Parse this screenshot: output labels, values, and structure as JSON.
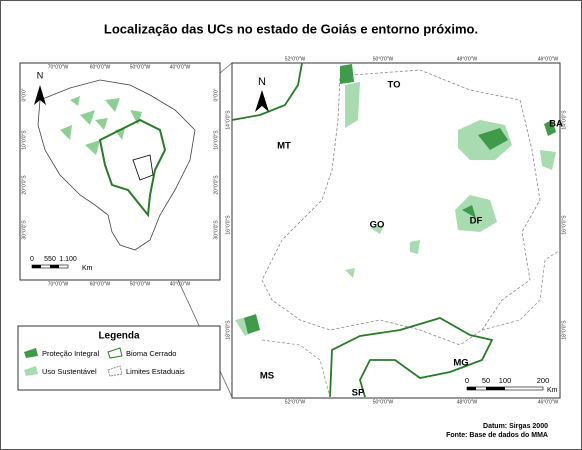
{
  "title": "Localização das UCs no estado de Goiás e entorno próximo.",
  "inset_map": {
    "north": "N",
    "lon_labels": [
      "70°0'0\"W",
      "60°0'0\"W",
      "50°0'0\"W",
      "40°0'0\"W"
    ],
    "lat_labels": [
      "0°0'0\"",
      "10°0'0\"S",
      "20°0'0\"S",
      "30°0'0\"S"
    ],
    "scale_labels": [
      "0",
      "550",
      "1.100"
    ],
    "scale_unit": "Km"
  },
  "main_map": {
    "north": "N",
    "lon_labels": [
      "52°0'0\"W",
      "50°0'0\"W",
      "48°0'0\"W",
      "46°0'0\"W"
    ],
    "lat_labels": [
      "14°0'0\"S",
      "16°0'0\"S",
      "18°0'0\"S"
    ],
    "state_labels": [
      "MT",
      "TO",
      "BA",
      "GO",
      "DF",
      "MS",
      "MG",
      "SP"
    ],
    "scale_labels": [
      "0",
      "50",
      "100",
      "200"
    ],
    "scale_unit": "Km"
  },
  "legend": {
    "title": "Legenda",
    "items": [
      "Proteção Integral",
      "Bioma Cerrado",
      "Uso Sustentável",
      "Limites Estaduais"
    ]
  },
  "footer": [
    "Datum: Sirgas 2000",
    "Fonte: Base de dados do MMA"
  ]
}
